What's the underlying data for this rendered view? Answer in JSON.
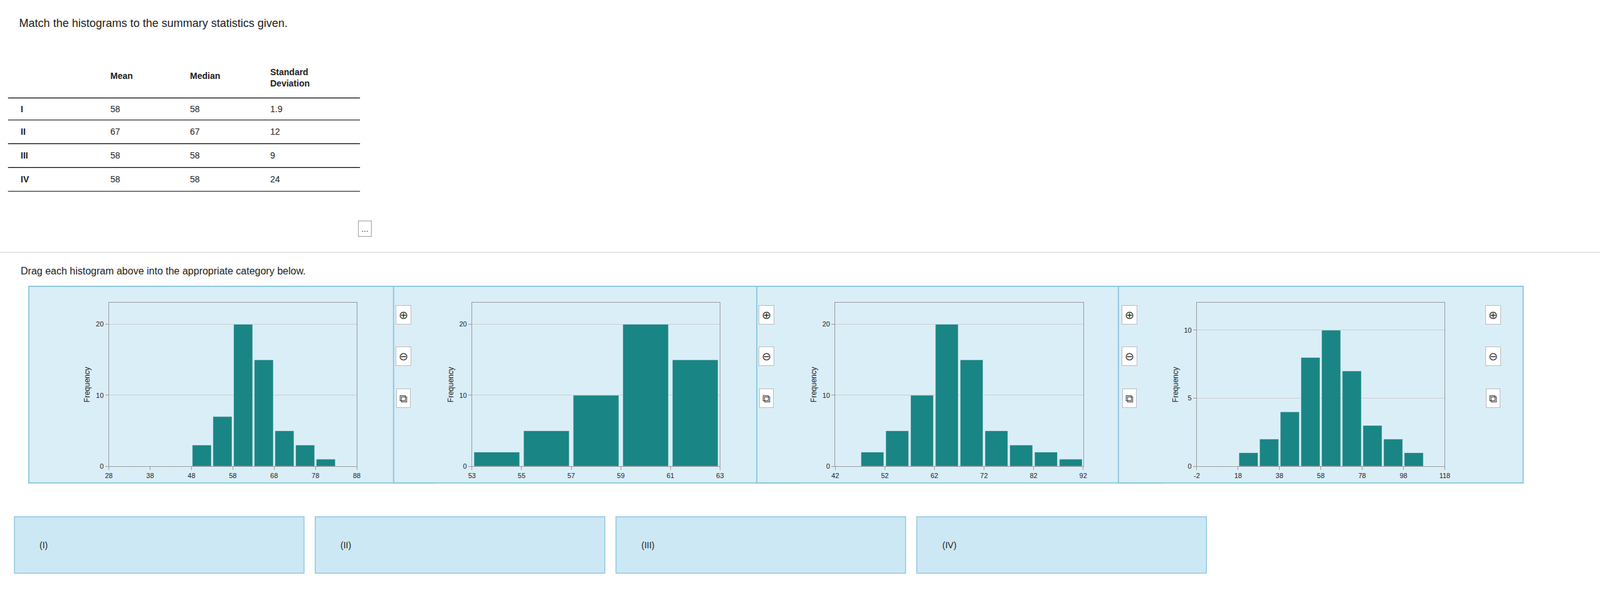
{
  "title": "Match the histograms to the summary statistics given.",
  "annotations": {
    "table_header": [
      "Mean",
      "Median",
      "Standard\nDeviation"
    ],
    "table_rows": [
      [
        "I",
        "58",
        "58",
        "1.9"
      ],
      [
        "II",
        "67",
        "67",
        "12"
      ],
      [
        "III",
        "58",
        "58",
        "9"
      ],
      [
        "IV",
        "58",
        "58",
        "24"
      ]
    ],
    "button": "...",
    "instruction": "Drag each histogram above into the appropriate category below.",
    "drop_labels": [
      "(I)",
      "(II)",
      "(III)",
      "(IV)"
    ],
    "icons": [
      "⊕",
      "⊖",
      "⧉"
    ]
  },
  "chart_data": [
    {
      "type": "histogram",
      "bins": [
        28,
        33,
        38,
        43,
        48,
        53,
        58,
        63,
        68,
        73,
        78,
        83,
        88
      ],
      "values": [
        0,
        0,
        0,
        0,
        3,
        7,
        20,
        15,
        5,
        3,
        1,
        0
      ],
      "xlim": [
        28,
        88
      ],
      "xticks": [
        28,
        38,
        48,
        58,
        68,
        78,
        88
      ],
      "ylim": [
        0,
        23
      ],
      "yticks": [
        0,
        10,
        20
      ],
      "ylabel": "Frequency",
      "color": "#1a8585",
      "grid": true
    },
    {
      "type": "histogram",
      "bins": [
        53,
        55,
        57,
        59,
        61,
        63
      ],
      "values": [
        2,
        5,
        10,
        20,
        15
      ],
      "xlim": [
        53,
        63
      ],
      "xticks": [
        53,
        55,
        57,
        59,
        61,
        63
      ],
      "ylim": [
        0,
        23
      ],
      "yticks": [
        0,
        10,
        20
      ],
      "ylabel": "Frequency",
      "color": "#1a8585",
      "grid": true
    },
    {
      "type": "histogram",
      "bins": [
        42,
        47,
        52,
        57,
        62,
        67,
        72,
        77,
        82,
        87,
        92
      ],
      "values": [
        0,
        2,
        5,
        10,
        20,
        15,
        5,
        3,
        2,
        1
      ],
      "xlim": [
        42,
        92
      ],
      "xticks": [
        42,
        52,
        62,
        72,
        82,
        92
      ],
      "ylim": [
        0,
        23
      ],
      "yticks": [
        0,
        10,
        20
      ],
      "ylabel": "Frequency",
      "color": "#1a8585",
      "grid": true
    },
    {
      "type": "histogram",
      "bins": [
        -2,
        8,
        18,
        28,
        38,
        48,
        58,
        68,
        78,
        88,
        98,
        108,
        118
      ],
      "values": [
        0,
        0,
        1,
        2,
        4,
        8,
        10,
        7,
        3,
        2,
        1,
        0
      ],
      "xlim": [
        -2,
        118
      ],
      "xticks": [
        -2,
        18,
        38,
        58,
        78,
        98,
        118
      ],
      "ylim": [
        0,
        12
      ],
      "yticks": [
        0,
        5,
        10
      ],
      "ylabel": "Frequency",
      "color": "#1a8585",
      "grid": true
    }
  ]
}
